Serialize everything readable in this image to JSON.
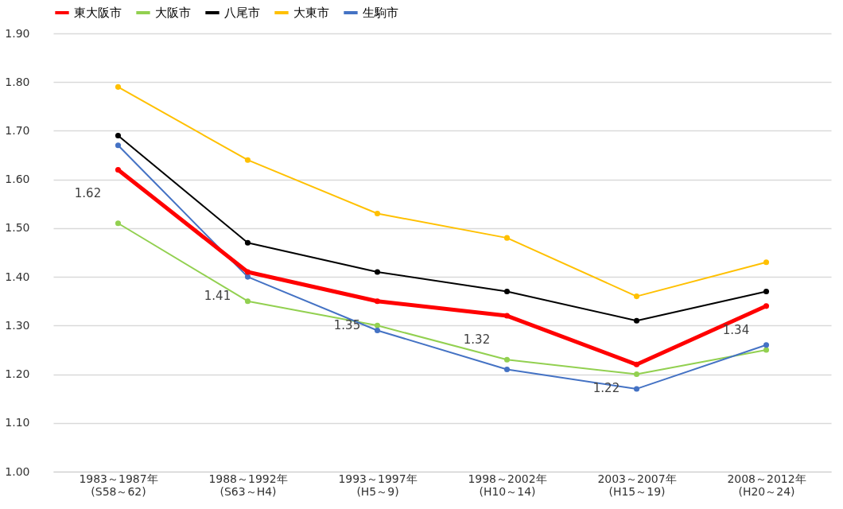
{
  "chart_data": {
    "type": "line",
    "categories": [
      "1983～1987年\n(S58～62)",
      "1988～1992年\n(S63～H4)",
      "1993～1997年\n(H5～9)",
      "1998～2002年\n(H10～14)",
      "2003～2007年\n(H15～19)",
      "2008～2012年\n(H20～24)"
    ],
    "series": [
      {
        "name": "東大阪市",
        "color": "#ff0000",
        "values": [
          1.62,
          1.41,
          1.35,
          1.32,
          1.22,
          1.34
        ],
        "value_labels": [
          "1.62",
          "1.41",
          "1.35",
          "1.32",
          "1.22",
          "1.34"
        ]
      },
      {
        "name": "大阪市",
        "color": "#92d050",
        "values": [
          1.51,
          1.35,
          1.3,
          1.23,
          1.2,
          1.25
        ]
      },
      {
        "name": "八尾市",
        "color": "#000000",
        "values": [
          1.69,
          1.47,
          1.41,
          1.37,
          1.31,
          1.37
        ]
      },
      {
        "name": "大東市",
        "color": "#ffc000",
        "values": [
          1.79,
          1.64,
          1.53,
          1.48,
          1.36,
          1.43
        ]
      },
      {
        "name": "生駒市",
        "color": "#4472c4",
        "values": [
          1.67,
          1.4,
          1.29,
          1.21,
          1.17,
          1.26
        ]
      }
    ],
    "ylim": [
      1.0,
      1.9
    ],
    "yticks": [
      {
        "value": 1.0,
        "label": "1.00"
      },
      {
        "value": 1.1,
        "label": "1.10"
      },
      {
        "value": 1.2,
        "label": "1.20"
      },
      {
        "value": 1.3,
        "label": "1.30"
      },
      {
        "value": 1.4,
        "label": "1.40"
      },
      {
        "value": 1.5,
        "label": "1.50"
      },
      {
        "value": 1.6,
        "label": "1.60"
      },
      {
        "value": 1.7,
        "label": "1.70"
      },
      {
        "value": 1.8,
        "label": "1.80"
      },
      {
        "value": 1.9,
        "label": "1.90"
      }
    ],
    "grid": "y",
    "legend": "top",
    "marker": "circle",
    "line_style": "solid"
  }
}
